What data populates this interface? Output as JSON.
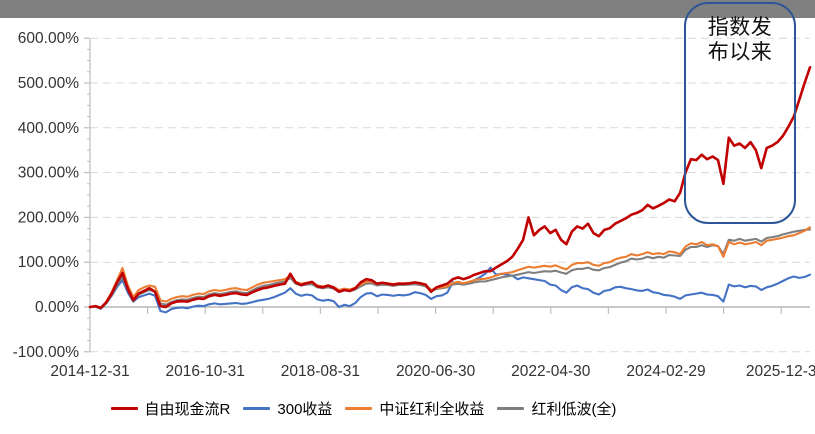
{
  "colors": {
    "top_bar": "#808080",
    "gridline": "#D9D9D9",
    "zero_line": "#A6A6A6",
    "axis_line": "#BFBFBF",
    "axis_text": "#333333",
    "annotation_border": "#2E5697"
  },
  "annotation": {
    "text": "指数发布以来"
  },
  "chart_data": {
    "type": "line",
    "title": "",
    "grid": "horizontal-dashed",
    "legend_position": "bottom",
    "x_axis": {
      "tick_labels": [
        "2014-12-31",
        "2016-10-31",
        "2018-08-31",
        "2020-06-30",
        "2022-04-30",
        "2024-02-29",
        "2025-12-3"
      ]
    },
    "y_axis": {
      "tick_labels": [
        "600.00%",
        "500.00%",
        "400.00%",
        "300.00%",
        "200.00%",
        "100.00%",
        "0.00%",
        "-100.00%"
      ],
      "min": -100,
      "max": 600,
      "unit": "%"
    },
    "series": [
      {
        "name": "自由现金流R",
        "color": "#C00000",
        "values": [
          0,
          2,
          -2,
          10,
          30,
          55,
          76,
          40,
          15,
          30,
          36,
          42,
          34,
          2,
          0,
          8,
          12,
          13,
          12,
          16,
          19,
          18,
          24,
          27,
          25,
          27,
          30,
          31,
          28,
          27,
          33,
          38,
          42,
          44,
          47,
          50,
          52,
          74,
          55,
          49,
          53,
          56,
          46,
          44,
          48,
          43,
          34,
          38,
          36,
          42,
          55,
          62,
          60,
          52,
          54,
          52,
          50,
          52,
          52,
          53,
          55,
          53,
          50,
          34,
          44,
          48,
          52,
          62,
          66,
          62,
          66,
          72,
          76,
          80,
          80,
          88,
          95,
          102,
          112,
          130,
          150,
          200,
          160,
          172,
          180,
          165,
          172,
          150,
          140,
          168,
          180,
          175,
          186,
          165,
          158,
          172,
          176,
          186,
          192,
          198,
          206,
          210,
          216,
          228,
          220,
          226,
          232,
          240,
          236,
          255,
          300,
          330,
          328,
          340,
          330,
          336,
          328,
          275,
          378,
          360,
          365,
          355,
          368,
          350,
          310,
          355,
          360,
          368,
          382,
          402,
          425,
          462,
          500,
          535
        ]
      },
      {
        "name": "300收益",
        "color": "#4472C4",
        "values": [
          0,
          1,
          -4,
          8,
          25,
          45,
          60,
          32,
          12,
          22,
          26,
          30,
          25,
          -9,
          -12,
          -5,
          -2,
          -1,
          -3,
          1,
          3,
          2,
          6,
          8,
          6,
          7,
          8,
          9,
          7,
          8,
          11,
          14,
          16,
          18,
          22,
          27,
          32,
          42,
          30,
          25,
          28,
          26,
          17,
          14,
          16,
          13,
          0,
          5,
          2,
          9,
          22,
          30,
          31,
          24,
          28,
          27,
          25,
          27,
          26,
          28,
          33,
          31,
          27,
          18,
          24,
          26,
          32,
          55,
          52,
          50,
          54,
          60,
          66,
          74,
          88,
          72,
          74,
          72,
          70,
          62,
          66,
          64,
          62,
          60,
          58,
          50,
          48,
          38,
          32,
          44,
          48,
          42,
          40,
          32,
          28,
          36,
          38,
          44,
          45,
          42,
          40,
          37,
          36,
          39,
          33,
          31,
          27,
          26,
          23,
          18,
          26,
          28,
          30,
          32,
          28,
          27,
          24,
          12,
          50,
          46,
          48,
          44,
          47,
          46,
          38,
          44,
          47,
          52,
          58,
          64,
          68,
          65,
          67,
          72
        ]
      },
      {
        "name": "中证红利全收益",
        "color": "#ED7D31",
        "values": [
          0,
          2,
          -2,
          12,
          33,
          60,
          87,
          48,
          22,
          38,
          44,
          48,
          45,
          15,
          12,
          18,
          22,
          24,
          23,
          27,
          30,
          29,
          35,
          38,
          36,
          38,
          41,
          42,
          39,
          38,
          44,
          50,
          54,
          56,
          58,
          60,
          62,
          70,
          56,
          52,
          54,
          55,
          48,
          46,
          48,
          45,
          38,
          41,
          39,
          43,
          50,
          56,
          57,
          52,
          54,
          53,
          51,
          53,
          52,
          53,
          54,
          52,
          49,
          38,
          42,
          44,
          46,
          53,
          56,
          53,
          56,
          60,
          62,
          63,
          66,
          70,
          74,
          76,
          78,
          82,
          86,
          90,
          88,
          90,
          92,
          90,
          93,
          88,
          84,
          94,
          98,
          98,
          100,
          94,
          92,
          98,
          100,
          106,
          110,
          112,
          118,
          115,
          118,
          122,
          118,
          120,
          118,
          124,
          122,
          118,
          135,
          142,
          140,
          145,
          138,
          140,
          136,
          112,
          145,
          140,
          144,
          140,
          142,
          145,
          138,
          148,
          150,
          152,
          155,
          158,
          160,
          165,
          170,
          178
        ]
      },
      {
        "name": "红利低波(全)",
        "color": "#7F7F7F",
        "values": [
          0,
          1,
          -3,
          9,
          27,
          50,
          67,
          38,
          16,
          28,
          33,
          38,
          34,
          8,
          5,
          11,
          15,
          17,
          16,
          20,
          23,
          22,
          28,
          31,
          29,
          31,
          34,
          35,
          32,
          31,
          37,
          43,
          47,
          49,
          52,
          55,
          57,
          65,
          52,
          48,
          50,
          51,
          44,
          42,
          44,
          41,
          34,
          37,
          35,
          39,
          46,
          52,
          53,
          48,
          50,
          49,
          47,
          49,
          49,
          50,
          51,
          49,
          46,
          36,
          40,
          42,
          44,
          50,
          52,
          50,
          52,
          55,
          57,
          57,
          60,
          63,
          66,
          68,
          70,
          72,
          75,
          78,
          76,
          78,
          80,
          79,
          81,
          77,
          74,
          82,
          85,
          85,
          88,
          83,
          82,
          87,
          89,
          94,
          99,
          102,
          108,
          106,
          108,
          112,
          109,
          112,
          110,
          116,
          115,
          114,
          128,
          134,
          134,
          138,
          134,
          138,
          136,
          118,
          150,
          148,
          152,
          148,
          150,
          152,
          146,
          154,
          156,
          158,
          162,
          165,
          168,
          170,
          172,
          173
        ]
      }
    ],
    "annotation": {
      "text": "指数发布以来",
      "border_color": "#2E5697"
    }
  }
}
